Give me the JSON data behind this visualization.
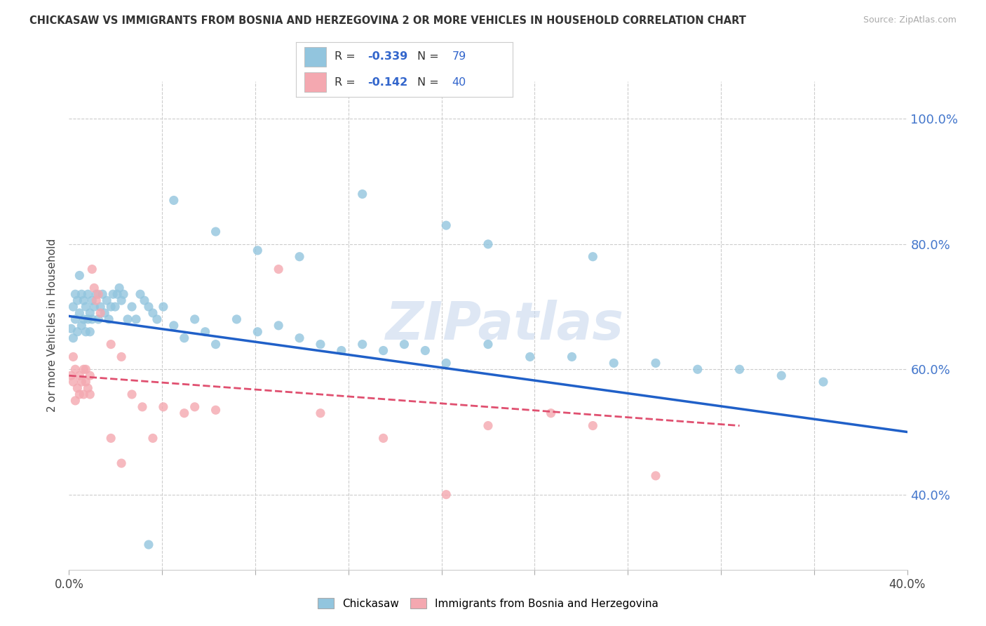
{
  "title": "CHICKASAW VS IMMIGRANTS FROM BOSNIA AND HERZEGOVINA 2 OR MORE VEHICLES IN HOUSEHOLD CORRELATION CHART",
  "source": "Source: ZipAtlas.com",
  "ylabel": "2 or more Vehicles in Household",
  "ytick_vals": [
    0.4,
    0.6,
    0.8,
    1.0
  ],
  "ytick_labels": [
    "40.0%",
    "60.0%",
    "80.0%",
    "100.0%"
  ],
  "legend1_r": "-0.339",
  "legend1_n": "79",
  "legend2_r": "-0.142",
  "legend2_n": "40",
  "blue_color": "#92c5de",
  "pink_color": "#f4a8b0",
  "blue_line_color": "#2060c8",
  "pink_line_color": "#e05070",
  "watermark": "ZIPatlas",
  "xlim": [
    0.0,
    0.4
  ],
  "ylim": [
    0.28,
    1.06
  ],
  "legend_text_color": "#3366cc",
  "legend_r_color": "#3366cc",
  "legend_label_color": "#333333",
  "blue_x": [
    0.001,
    0.002,
    0.002,
    0.003,
    0.003,
    0.004,
    0.004,
    0.005,
    0.005,
    0.006,
    0.006,
    0.007,
    0.007,
    0.008,
    0.008,
    0.009,
    0.009,
    0.01,
    0.01,
    0.011,
    0.011,
    0.012,
    0.013,
    0.014,
    0.015,
    0.016,
    0.017,
    0.018,
    0.019,
    0.02,
    0.021,
    0.022,
    0.023,
    0.024,
    0.025,
    0.026,
    0.028,
    0.03,
    0.032,
    0.034,
    0.036,
    0.038,
    0.04,
    0.042,
    0.045,
    0.05,
    0.055,
    0.06,
    0.065,
    0.07,
    0.08,
    0.09,
    0.1,
    0.11,
    0.12,
    0.13,
    0.14,
    0.15,
    0.16,
    0.17,
    0.18,
    0.2,
    0.22,
    0.24,
    0.26,
    0.28,
    0.3,
    0.32,
    0.34,
    0.36,
    0.14,
    0.18,
    0.2,
    0.25,
    0.05,
    0.07,
    0.09,
    0.11,
    0.038
  ],
  "blue_y": [
    0.665,
    0.7,
    0.65,
    0.72,
    0.68,
    0.71,
    0.66,
    0.69,
    0.75,
    0.67,
    0.72,
    0.68,
    0.71,
    0.66,
    0.7,
    0.68,
    0.72,
    0.66,
    0.69,
    0.71,
    0.68,
    0.7,
    0.72,
    0.68,
    0.7,
    0.72,
    0.69,
    0.71,
    0.68,
    0.7,
    0.72,
    0.7,
    0.72,
    0.73,
    0.71,
    0.72,
    0.68,
    0.7,
    0.68,
    0.72,
    0.71,
    0.7,
    0.69,
    0.68,
    0.7,
    0.67,
    0.65,
    0.68,
    0.66,
    0.64,
    0.68,
    0.66,
    0.67,
    0.65,
    0.64,
    0.63,
    0.64,
    0.63,
    0.64,
    0.63,
    0.61,
    0.64,
    0.62,
    0.62,
    0.61,
    0.61,
    0.6,
    0.6,
    0.59,
    0.58,
    0.88,
    0.83,
    0.8,
    0.78,
    0.87,
    0.82,
    0.79,
    0.78,
    0.32
  ],
  "pink_x": [
    0.001,
    0.002,
    0.002,
    0.003,
    0.003,
    0.004,
    0.005,
    0.005,
    0.006,
    0.007,
    0.007,
    0.008,
    0.008,
    0.009,
    0.01,
    0.01,
    0.011,
    0.012,
    0.013,
    0.014,
    0.015,
    0.02,
    0.025,
    0.03,
    0.035,
    0.045,
    0.055,
    0.06,
    0.07,
    0.1,
    0.12,
    0.15,
    0.18,
    0.2,
    0.23,
    0.25,
    0.28,
    0.02,
    0.025,
    0.04
  ],
  "pink_y": [
    0.59,
    0.62,
    0.58,
    0.6,
    0.55,
    0.57,
    0.59,
    0.56,
    0.58,
    0.6,
    0.56,
    0.58,
    0.6,
    0.57,
    0.59,
    0.56,
    0.76,
    0.73,
    0.71,
    0.72,
    0.69,
    0.64,
    0.62,
    0.56,
    0.54,
    0.54,
    0.53,
    0.54,
    0.535,
    0.76,
    0.53,
    0.49,
    0.4,
    0.51,
    0.53,
    0.51,
    0.43,
    0.49,
    0.45,
    0.49
  ],
  "blue_trendline_x0": 0.0,
  "blue_trendline_x1": 0.4,
  "blue_trendline_y0": 0.685,
  "blue_trendline_y1": 0.5,
  "pink_trendline_x0": 0.0,
  "pink_trendline_x1": 0.32,
  "pink_trendline_y0": 0.59,
  "pink_trendline_y1": 0.51
}
